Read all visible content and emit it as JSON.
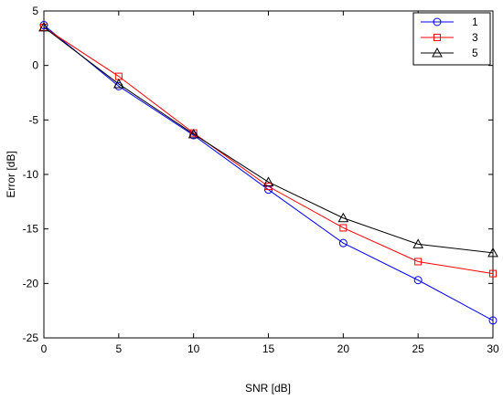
{
  "chart_data": {
    "type": "line",
    "title": "",
    "xlabel": "SNR [dB]",
    "ylabel": "Error [dB]",
    "x": [
      0,
      5,
      10,
      15,
      20,
      25,
      30
    ],
    "xlim": [
      0,
      30
    ],
    "ylim": [
      -25,
      5
    ],
    "xticks": [
      0,
      5,
      10,
      15,
      20,
      25,
      30
    ],
    "yticks": [
      5,
      0,
      -5,
      -10,
      -15,
      -20,
      -25
    ],
    "grid": false,
    "legend_position": "top-right",
    "series": [
      {
        "name": "1",
        "color": "#0000ff",
        "marker": "circle",
        "values": [
          3.7,
          -1.9,
          -6.4,
          -11.4,
          -16.3,
          -19.7,
          -23.4
        ]
      },
      {
        "name": "3",
        "color": "#ff0000",
        "marker": "square",
        "values": [
          3.5,
          -1.0,
          -6.2,
          -11.1,
          -14.9,
          -18.0,
          -19.1
        ]
      },
      {
        "name": "5",
        "color": "#000000",
        "marker": "triangle",
        "values": [
          3.5,
          -1.7,
          -6.3,
          -10.7,
          -14.0,
          -16.4,
          -17.2
        ]
      }
    ]
  }
}
